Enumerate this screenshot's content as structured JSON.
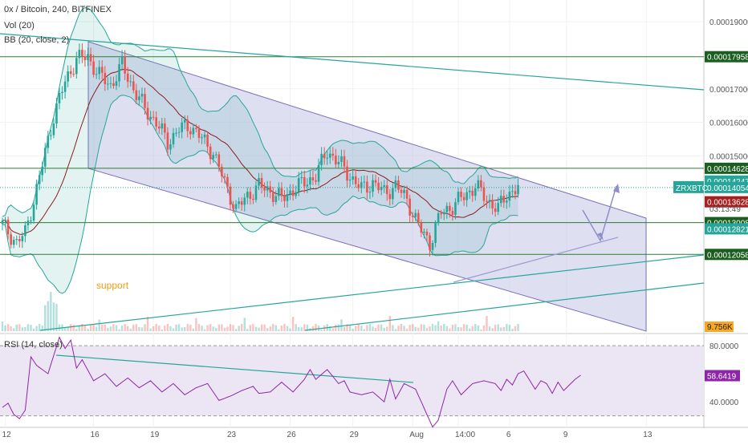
{
  "header": {
    "symbol_line": "0x / Bitcoin, 240, BITFINEX",
    "vol_label": "Vol (20)",
    "bb_label": "BB (20, close, 2)",
    "rsi_label": "RSI (14, close)"
  },
  "colors": {
    "up": "#26a69a",
    "down": "#ef5350",
    "band": "#26a69a",
    "basis": "#8b1c1c",
    "channel_fill": "#c5c5e8",
    "channel_line": "#7a6fb5",
    "hline": "#2e7d32",
    "rsi": "#8e24aa",
    "support_text": "#f39c12"
  },
  "chart_data": [
    {
      "type": "candlestick",
      "title": "0x / Bitcoin, 240, BITFINEX",
      "x_ticks": [
        "12",
        "16",
        "19",
        "23",
        "26",
        "29",
        "Aug",
        "14:00",
        "6",
        "9",
        "13"
      ],
      "y_ticks": [
        "0.00019000",
        "0.00017000",
        "0.00016000",
        "0.00015000",
        "0.00013000"
      ],
      "ylim": [
        9.72e-05,
        0.0001965
      ],
      "annotation": "support",
      "symbol_tag": "ZRXBTC",
      "countdown": "03:13:49",
      "level_labels": [
        {
          "text": "0.00017958",
          "style": "dark"
        },
        {
          "text": "0.00014628",
          "style": "dark"
        },
        {
          "text": "0.00014247",
          "style": "teal"
        },
        {
          "text": "0.00014054",
          "style": "teal"
        },
        {
          "text": "0.00013628",
          "style": "red"
        },
        {
          "text": "0.00013008",
          "style": "dark"
        },
        {
          "text": "0.00012821",
          "style": "teal"
        },
        {
          "text": "0.00012058",
          "style": "dark"
        }
      ],
      "horizontal_levels": [
        0.00017958,
        0.00014628,
        0.00013008,
        0.00012058
      ],
      "candles_key_points": [
        [
          0,
          0.0001295
        ],
        [
          5,
          0.000124
        ],
        [
          8,
          0.000127
        ],
        [
          12,
          0.00014
        ],
        [
          18,
          0.000162
        ],
        [
          22,
          0.000172
        ],
        [
          26,
          0.000179
        ],
        [
          30,
          0.0001795
        ],
        [
          34,
          0.000174
        ],
        [
          38,
          0.000171
        ],
        [
          42,
          0.000177
        ],
        [
          46,
          0.00017
        ],
        [
          50,
          0.000164
        ],
        [
          54,
          0.00016
        ],
        [
          58,
          0.000154
        ],
        [
          62,
          0.000158
        ],
        [
          66,
          0.000159
        ],
        [
          70,
          0.000155
        ],
        [
          74,
          0.000151
        ],
        [
          78,
          0.000142
        ],
        [
          82,
          0.000134
        ],
        [
          86,
          0.000138
        ],
        [
          90,
          0.000141
        ],
        [
          94,
          0.0001395
        ],
        [
          98,
          0.000137
        ],
        [
          102,
          0.00014
        ],
        [
          106,
          0.000142
        ],
        [
          110,
          0.000144
        ],
        [
          114,
          0.0001515
        ],
        [
          118,
          0.000148
        ],
        [
          122,
          0.000144
        ],
        [
          126,
          0.00014
        ],
        [
          130,
          0.000142
        ],
        [
          134,
          0.000139
        ],
        [
          138,
          0.000141
        ],
        [
          142,
          0.000137
        ],
        [
          146,
          0.000129
        ],
        [
          150,
          0.000124
        ],
        [
          154,
          0.000133
        ],
        [
          158,
          0.000135
        ],
        [
          162,
          0.000138
        ],
        [
          166,
          0.000141
        ],
        [
          170,
          0.000137
        ],
        [
          174,
          0.000134
        ],
        [
          177,
          0.0001385
        ],
        [
          181,
          0.0001405
        ]
      ],
      "volume_axis_label": "9.756K"
    },
    {
      "type": "line",
      "title": "RSI (14, close)",
      "y_ticks": [
        "80.0000",
        "40.0000"
      ],
      "ylim": [
        23.5,
        87.5
      ],
      "last_value_label": "58.6419",
      "key_points": [
        [
          0,
          36
        ],
        [
          2,
          39
        ],
        [
          4,
          31
        ],
        [
          6,
          28
        ],
        [
          8,
          34
        ],
        [
          10,
          72
        ],
        [
          12,
          66
        ],
        [
          16,
          60
        ],
        [
          20,
          86
        ],
        [
          22,
          78
        ],
        [
          24,
          84
        ],
        [
          26,
          64
        ],
        [
          28,
          70
        ],
        [
          32,
          55
        ],
        [
          36,
          60
        ],
        [
          40,
          51
        ],
        [
          44,
          57
        ],
        [
          48,
          50
        ],
        [
          52,
          55
        ],
        [
          56,
          47
        ],
        [
          60,
          53
        ],
        [
          64,
          45
        ],
        [
          68,
          50
        ],
        [
          72,
          53
        ],
        [
          76,
          41
        ],
        [
          80,
          44
        ],
        [
          84,
          48
        ],
        [
          88,
          51
        ],
        [
          90,
          46
        ],
        [
          94,
          47
        ],
        [
          98,
          54
        ],
        [
          102,
          47
        ],
        [
          106,
          56
        ],
        [
          108,
          63
        ],
        [
          110,
          56
        ],
        [
          114,
          63
        ],
        [
          118,
          53
        ],
        [
          120,
          55
        ],
        [
          122,
          47
        ],
        [
          126,
          45
        ],
        [
          130,
          47
        ],
        [
          134,
          40
        ],
        [
          136,
          56
        ],
        [
          138,
          42
        ],
        [
          141,
          53
        ],
        [
          145,
          49
        ],
        [
          149,
          31
        ],
        [
          151,
          22
        ],
        [
          153,
          27
        ],
        [
          156,
          49
        ],
        [
          158,
          55
        ],
        [
          161,
          45
        ],
        [
          165,
          53
        ],
        [
          169,
          55
        ],
        [
          173,
          53
        ],
        [
          175,
          48
        ],
        [
          177,
          56
        ],
        [
          179,
          52
        ],
        [
          181,
          60
        ],
        [
          183,
          62
        ],
        [
          187,
          49
        ],
        [
          189,
          55
        ],
        [
          191,
          53
        ],
        [
          193,
          46
        ],
        [
          195,
          54
        ],
        [
          197,
          48
        ],
        [
          199,
          52
        ],
        [
          201,
          56
        ],
        [
          203,
          59
        ]
      ]
    }
  ]
}
